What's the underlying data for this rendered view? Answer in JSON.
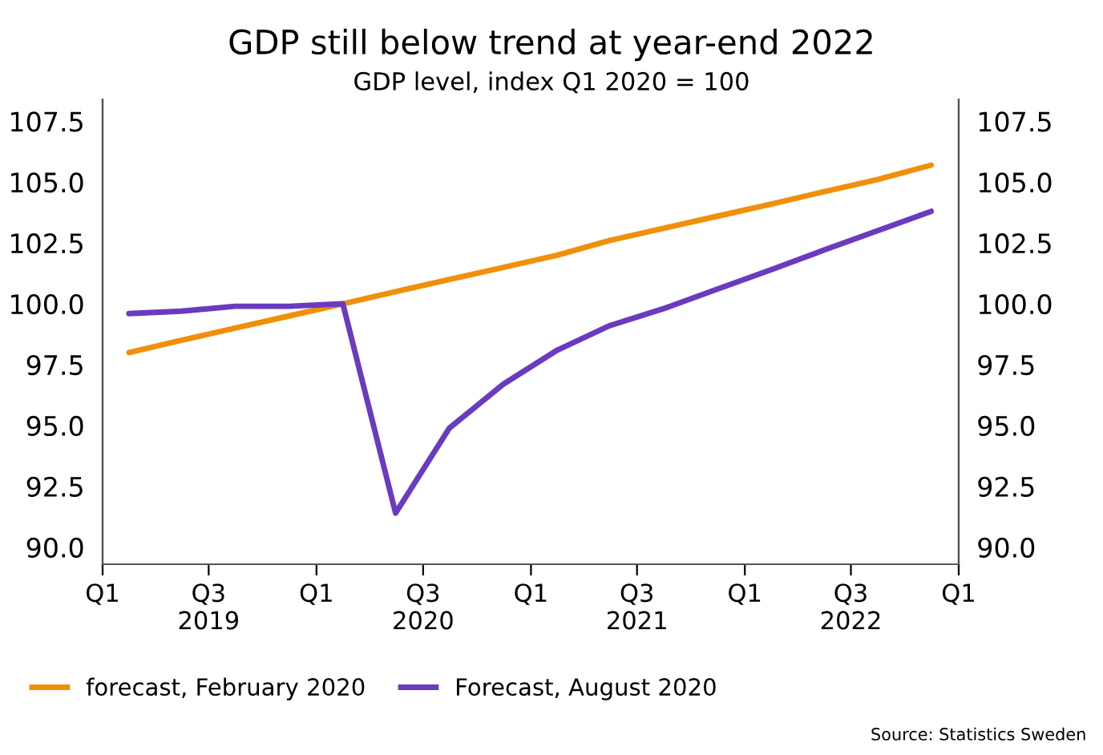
{
  "chart_data": {
    "type": "line",
    "title": "GDP still below trend at year-end 2022",
    "subtitle": "GDP level, index Q1 2020 = 100",
    "x": [
      "2019-02-15",
      "2019-05-15",
      "2019-08-15",
      "2019-11-15",
      "2020-02-15",
      "2020-05-15",
      "2020-08-15",
      "2020-11-15",
      "2021-02-15",
      "2021-05-15",
      "2021-08-15",
      "2021-11-15",
      "2022-02-15",
      "2022-05-15",
      "2022-08-15",
      "2022-11-15"
    ],
    "series": [
      {
        "name": "forecast, February 2020",
        "color": "#f0900a",
        "values": [
          98.0,
          98.5,
          99.0,
          99.5,
          100.0,
          100.5,
          101.0,
          101.5,
          102.0,
          102.6,
          103.1,
          103.6,
          104.1,
          104.6,
          105.1,
          105.7
        ]
      },
      {
        "name": "Forecast, August 2020",
        "color": "#6a3bbf",
        "values": [
          99.6,
          99.7,
          99.9,
          99.9,
          100.0,
          91.4,
          94.9,
          96.7,
          98.1,
          99.1,
          99.8,
          100.6,
          101.4,
          102.2,
          103.0,
          103.8
        ]
      }
    ],
    "xlim": [
      "2019-01-01",
      "2023-01-01"
    ],
    "xticks": [
      {
        "value": "2019-01-01",
        "label": "Q1\n "
      },
      {
        "value": "2019-07-01",
        "label": "Q3\n2019"
      },
      {
        "value": "2020-01-01",
        "label": "Q1\n "
      },
      {
        "value": "2020-07-01",
        "label": "Q3\n2020"
      },
      {
        "value": "2021-01-01",
        "label": "Q1\n "
      },
      {
        "value": "2021-07-01",
        "label": "Q3\n2021"
      },
      {
        "value": "2022-01-01",
        "label": "Q1\n "
      },
      {
        "value": "2022-07-01",
        "label": "Q3\n2022"
      },
      {
        "value": "2023-01-01",
        "label": "Q1\n "
      }
    ],
    "ylim": [
      89.3,
      108.4
    ],
    "yticks": [
      {
        "value": 90,
        "label": "90.0"
      },
      92.5,
      {
        "value": 95,
        "label": "95.0"
      },
      97.5,
      {
        "value": 100,
        "label": "100.0"
      },
      102.5,
      {
        "value": 105,
        "label": "105.0"
      },
      107.5
    ],
    "y2lim": [
      89.3,
      108.4
    ],
    "y2ticks": [
      {
        "value": 90,
        "label": "90.0"
      },
      92.5,
      {
        "value": 95,
        "label": "95.0"
      },
      97.5,
      {
        "value": 100,
        "label": "100.0"
      },
      102.5,
      {
        "value": 105,
        "label": "105.0"
      },
      107.5
    ],
    "grid": false,
    "legend": "bottom",
    "marker": "none",
    "line_style": "solid",
    "annotations": [
      "Source: Statistics Sweden"
    ]
  }
}
